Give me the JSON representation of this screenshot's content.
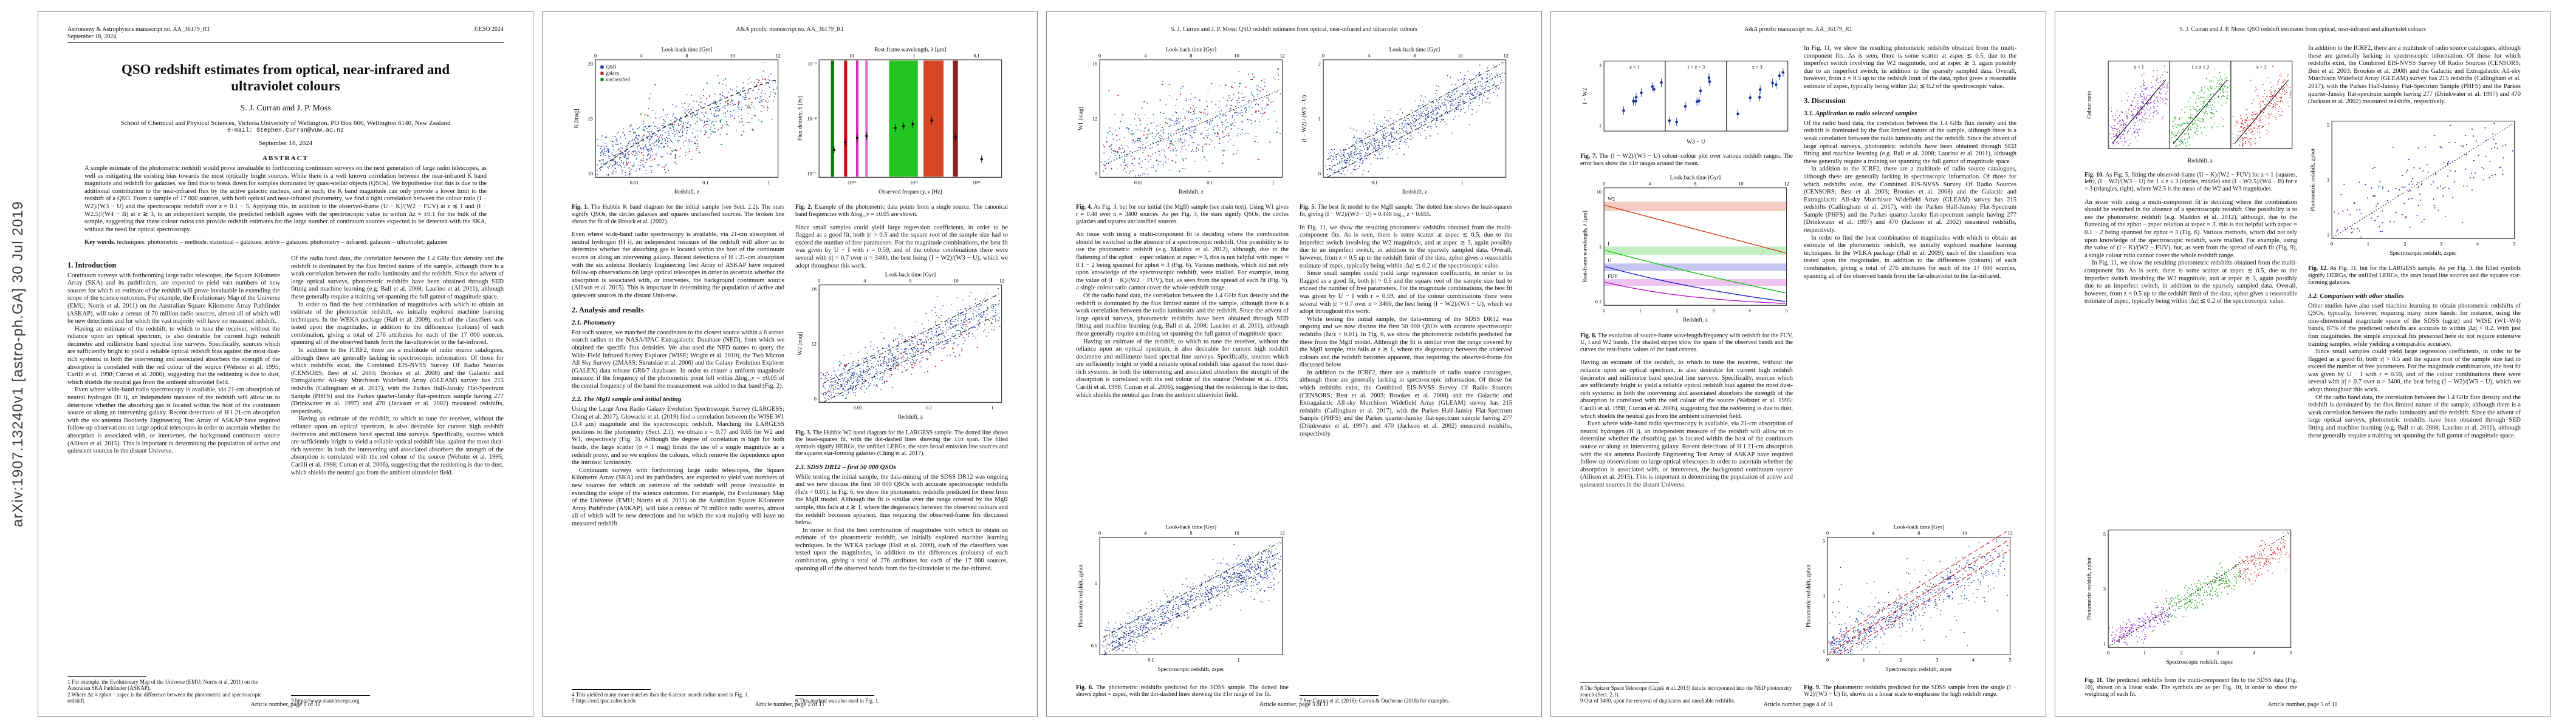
{
  "arxiv_stamp": "arXiv:1907.13240v1  [astro-ph.GA]  30 Jul 2019",
  "journal": {
    "manuscript_line": "Astronomy & Astrophysics manuscript no. AA_36179_R1",
    "date_line": "September 18, 2024",
    "eso_line": "©ESO 2024",
    "proofs_header": "A&A proofs: manuscript no. AA_36179_R1",
    "running_header": "S. J. Curran and J. P. Moss: QSO redshift estimates from optical, near-infrared and ultraviolet colours",
    "footers": [
      "Article number, page 1 of 11",
      "Article number, page 2 of 11",
      "Article number, page 3 of 11",
      "Article number, page 4 of 11",
      "Article number, page 5 of 11"
    ]
  },
  "titleblock": {
    "title": "QSO redshift estimates from optical, near-infrared and ultraviolet colours",
    "authors": "S. J. Curran and J. P. Moss",
    "affiliation": "School of Chemical and Physical Sciences, Victoria University of Wellington, PO Box 600, Wellington 6140, New Zealand",
    "email": "e-mail: Stephen.Curran@vuw.ac.nz",
    "date": "September 18, 2024",
    "abstract_label": "ABSTRACT",
    "abstract": "A simple estimate of the photometric redshift would prove invaluable to forthcoming continuum surveys on the next generation of large radio telescopes, as well as mitigating the existing bias towards the most optically bright sources. While there is a well known correlation between the near-infrared K band magnitude and redshift for galaxies, we find this to break down for samples dominated by quasi-stellar objects (QSOs). We hypothesise that this is due to the additional contribution to the near-infrared flux by the active galactic nucleus, and as such, the K band magnitude can only provide a lower limit to the redshift of a QSO. From a sample of 17 000 sources, with both optical and near-infrared photometry, we find a tight correlation between the colour ratio (I − W2)/(W3 − U) and the spectroscopic redshift over z ≈ 0.1 − 5. Applying this, in addition to the observed-frame (U − K)/(W2 − FUV) at z ≲ 1 and (I − W2.5)/(W4 − B) at z ≳ 3, to an independent sample, the predicted redshift agrees with the spectroscopic value to within Δz ≈ ±0.1 for the bulk of the sample, suggesting that these colour ratios can provide redshift estimates for the large number of continuum sources expected to be detected with the SKA, without the need for optical spectroscopy.",
    "keywords_label": "Key words.",
    "keywords": "techniques: photometric – methods: statistical – galaxies: active – galaxies: photometry – infrared: galaxies – ultraviolet: galaxies"
  },
  "sections": {
    "s1": "1. Introduction",
    "s2": "2. Analysis and results",
    "s21": "2.1. Photometry",
    "s22": "2.2. The MgII sample and initial testing",
    "s23": "2.3. SDSS DR12 – first 50 000 QSOs",
    "s3": "3. Discussion",
    "s31": "3.1. Application to radio selected samples",
    "s32": "3.2. Comparison with other studies"
  },
  "body": {
    "pA": "Continuum surveys with forthcoming large radio telescopes, the Square Kilometre Array (SKA) and its pathfinders, are expected to yield vast numbers of new sources for which an estimate of the redshift will prove invaluable in extending the scope of the science outcomes. For example, the Evolutionary Map of the Universe (EMU; Norris et al. 2011) on the Australian Square Kilometre Array Pathfinder (ASKAP), will take a census of 70 million radio sources, almost all of which will be new detections and for which the vast majority will have no measured redshift.",
    "pB": "Having an estimate of the redshift, to which to tune the receiver, without the reliance upon an optical spectrum, is also desirable for current high redshift decimetre and millimetre band spectral line surveys. Specifically, sources which are sufficiently bright to yield a reliable optical redshift bias against the most dust-rich systems: in both the intervening and associated absorbers the strength of the absorption is correlated with the red colour of the source (Webster et al. 1995; Carilli et al. 1998; Curran et al. 2006), suggesting that the reddening is due to dust, which shields the neutral gas from the ambient ultraviolet field.",
    "pC": "Even where wide-band radio spectroscopy is available, via 21-cm absorption of neutral hydrogen (H i), an independent measure of the redshift will allow us to determine whether the absorbing gas is located within the host of the continuum source or along an intervening galaxy. Recent detections of H i 21-cm absorption with the six antenna Boolardy Engineering Test Array of ASKAP have required follow-up observations on large optical telescopes in order to ascertain whether the absorption is associated with, or intervenes, the background continuum source (Allison et al. 2015). This is important in determining the population of active and quiescent sources in the distant Universe.",
    "pD": "For each source, we matched the coordinates to the closest source within a 6 arcsec search radius in the NASA/IPAC Extragalactic Database (NED), from which we obtained the specific flux densities. We also used the NED names to query the Wide-Field Infrared Survey Explorer (WISE; Wright et al. 2010), the Two Micron All Sky Survey (2MASS; Skrutskie et al. 2006) and the Galaxy Evolution Explorer (GALEX) data release GR6/7 databases. In order to ensure a uniform magnitude measure, if the frequency of the photometric point fell within Δlog₁₀ν = ±0.05 of the central frequency of the band the measurement was added to that band (Fig. 2).",
    "pE": "Since small samples could yield large regression coefficients, in order to be flagged as a good fit, both |r| > 0.5 and the square root of the sample size had to exceed the number of free parameters. For the magnitude combinations, the best fit was given by U − I with r = 0.59, and of the colour combinations there were several with |r| > 0.7 over n > 3400, the best being (I − W2)/(W3 − U), which we adopt throughout this work.",
    "pF": "While testing the initial sample, the data-mining of the SDSS DR12 was ongoing and we now discuss the first 50 000 QSOs with accurate spectroscopic redshifts (δz/z < 0.01). In Fig. 6, we show the photometric redshifts predicted for these from the MgII model. Although the fit is similar over the range covered by the MgII sample, this fails at z ≳ 1, where the degeneracy between the observed colours and the redshift becomes apparent, thus requiring the observed-frame fits discussed below.",
    "pG": "In order to find the best combination of magnitudes with which to obtain an estimate of the photometric redshift, we initially explored machine learning techniques. In the WEKA package (Hall et al. 2009), each of the classifiers was tested upon the magnitudes, in addition to the differences (colours) of each combination, giving a total of 276 attributes for each of the 17 000 sources, spanning all of the observed bands from the far-ultraviolet to the far-infrared.",
    "pH": "An issue with using a multi-component fit is deciding where the combination should be switched in the absence of a spectroscopic redshift. One possibility is to use the photometric redshift (e.g. Maddox et al. 2012), although, due to the flattening of the zphot − zspec relation at zspec ≈ 3, this is not helpful with zspec ≈ 0.1 − 2 being spanned for zphot ≈ 3 (Fig. 6). Various methods, which did not rely upon knowledge of the spectroscopic redshift, were trialled. For example, using the value of (I − K)/(W2 − FUV), but, as seen from the spread of each fit (Fig. 9), a single colour ratio cannot cover the whole redshift range.",
    "pI": "Of the radio band data, the correlation between the 1.4 GHz flux density and the redshift is dominated by the flux limited nature of the sample, although there is a weak correlation between the radio luminosity and the redshift. Since the advent of large optical surveys, photometric redshifts have been obtained through SED fitting and machine learning (e.g. Ball et al. 2008; Laurino et al. 2011), although these generally require a training set spanning the full gamut of magnitude space.",
    "pJ": "In addition to the ICRF2, there are a multitude of radio source catalogues, although these are generally lacking in spectroscopic information. Of those for which redshifts exist, the Combined EIS-NVSS Survey Of Radio Sources (CENSORS; Best et al. 2003; Brookes et al. 2008) and the Galactic and Extragalactic All-sky Murchison Widefield Array (GLEAM) survey has 215 redshifts (Callingham et al. 2017), with the Parkes Half-Jansky Flat-Spectrum Sample (PHFS) and the Parkes quarter-Jansky flat-spectrum sample having 277 (Drinkwater et al. 1997) and 470 (Jackson et al. 2002) measured redshifts, respectively.",
    "pK": "In Fig. 11, we show the resulting photometric redshifts obtained from the multi-component fits. As is seen, there is some scatter at zspec ≲ 0.5, due to the imperfect switch involving the W2 magnitude, and at zspec ≳ 3, again possibly due to an imperfect switch, in addition to the sparsely sampled data. Overall, however, from z ≈ 0.5 up to the redshift limit of the data, zphot gives a reasonable estimate of zspec, typically being within |Δz| ≲ 0.2 of the spectroscopic value.",
    "pL": "Other studies have also used machine learning to obtain photometric redshifts of QSOs, typically, however, requiring many more bands: for instance, using the nine-dimensional magnitude space of the SDSS (ugriz) and WISE (W1–W4) bands, 87% of the predicted redshifts are accurate to within |Δz| < 0.2. With just four magnitudes, the simple empirical fits presented here do not require extensive training samples, while yielding a comparable accuracy.",
    "pM": "Using the Large Area Radio Galaxy Evolution Spectroscopic Survey (LARGESS; Ching et al. 2017), Glowacki et al. (2019) find a correlation between the WISE W1 (3.4 μm) magnitude and the spectroscopic redshift. Matching the LARGESS positions to the photometry (Sect. 2.1), we obtain r = 0.77 and 0.65 for W2 and W1, respectively (Fig. 3). Although the degree of correlation is high for both bands, the large scatter (σ ≈ 1 mag) limits the use of a single magnitude as a redshift proxy, and so we explore the colours, which remove the dependence upon the intrinsic luminosity."
  },
  "footnotes": {
    "fn1": "1 For example, the Evolutionary Map of the Universe (EMU; Norris et al. 2011) on the Australian SKA Pathfinder (ASKAP).",
    "fn2": "2 Where Δz ≡ zphot − zspec is the difference between the photometric and spectroscopic redshift.",
    "fn3": "3 https://www.skatelescope.org",
    "fn4": "4 This yielded many more matches than the 6 arcsec search radius used in Fig. 1.",
    "fn5": "5 https://ned.ipac.caltech.edu",
    "fn6": "6 This method was also used in Fig. 1.",
    "fn7": "7 See Curran et al. (2016); Curran & Duchesne (2018) for examples.",
    "fn8": "8 The Spitzer Space Telescope (Capak et al. 2013) data is incorporated into the NED photometry search (Sect. 2.1).",
    "fn9": "9 Out of 3400, upon the removal of duplicates and unreliable redshifts."
  },
  "ticks": {
    "lookback": [
      "0",
      "4",
      "8",
      "10",
      "12"
    ],
    "logz3": [
      "0.01",
      "0.1",
      "1"
    ],
    "logz2": [
      "0.1",
      "1"
    ],
    "lin": [
      "0",
      "1",
      "2",
      "3",
      "4",
      "5"
    ],
    "wl": [
      "10",
      "1",
      "0.1"
    ],
    "flux": [
      "10⁻³",
      "10⁻⁴",
      "10⁻⁵"
    ],
    "freq": [
      "10¹⁴",
      "10¹⁵",
      "10¹⁶"
    ]
  },
  "figures": {
    "fig1": {
      "label": "Fig. 1.",
      "caption": "The Hubble K band diagram for the initial sample (see Sect. 2.2). The stars signify QSOs, the circles galaxies and squares unclassified sources. The broken line shows the fit of de Breuck et al. (2002).",
      "toplabel": "Look-back time [Gyr]",
      "xlabel": "Redshift, z",
      "ylabel": "K [mag]",
      "yticks": [
        "20",
        "15",
        "10"
      ],
      "legend": [
        "QSO",
        "galaxy",
        "unclassified"
      ]
    },
    "fig2": {
      "label": "Fig. 2.",
      "caption": "Example of the photometric data points from a single source. The canonical band frequencies with Δlog₁₀ν = ±0.05 are shown.",
      "toplabel": "Rest-frame wavelength, λ [μm]",
      "xlabel": "Observed frequency, ν [Hz]",
      "ylabel": "Flux density, S [Jy]"
    },
    "fig3": {
      "label": "Fig. 3.",
      "caption": "The Hubble W2 band diagram for the LARGESS sample. The dotted line shows the least-squares fit, with the dot-dashed lines showing the ±1σ span. The filled symbols signify HERGs, the unfilled LERGs, the stars broad emission line sources and the squares star-forming galaxies (Ching et al. 2017).",
      "toplabel": "Look-back time [Gyr]",
      "xlabel": "Redshift, z",
      "ylabel": "W2 [mag]",
      "yticks": [
        "16",
        "12",
        "8"
      ]
    },
    "fig4": {
      "label": "Fig. 4.",
      "caption": "As Fig. 3, but for our initial (the MgII) sample (see main text). Using W1 gives r = 0.48 over n = 3400 sources. As per Fig. 3, the stars signify QSOs, the circles galaxies and squares unclassified sources.",
      "toplabel": "Look-back time [Gyr]",
      "xlabel": "Redshift, z",
      "ylabel": "W1 [mag]",
      "yticks": [
        "16",
        "12",
        "8"
      ]
    },
    "fig5": {
      "label": "Fig. 5.",
      "caption": "The best fit model to the MgII sample. The dotted line shows the least-squares fit, giving (I − W2)/(W3 − U) = 0.448 log₁₀ z + 0.655.",
      "toplabel": "Look-back time [Gyr]",
      "xlabel": "Redshift, z",
      "ylabel": "(I − W2) / (W3 − U)",
      "yticks": [
        "2",
        "1",
        "0"
      ]
    },
    "fig6": {
      "label": "Fig. 6.",
      "caption": "The photometric redshifts predicted for the SDSS sample. The dotted line shows zphot = zspec, with the dot-dashed lines showing the ±1σ range of the fit.",
      "toplabel": "Look-back time [Gyr]",
      "xlabel": "Spectroscopic redshift, zspec",
      "ylabel": "Photometric redshift, zphot",
      "yticks": [
        "1",
        "0.1"
      ]
    },
    "fig7": {
      "label": "Fig. 7.",
      "caption": "The (I − W2)/(W3 − U) colour–colour plot over various redshift ranges. The error bars show the ±1σ ranges around the mean.",
      "xlabel": "W3 − U",
      "ylabel": "I − W2",
      "yticks": [
        "3",
        "1"
      ],
      "panels": [
        "z < 1",
        "1 < z < 3",
        "z > 3"
      ]
    },
    "fig8": {
      "label": "Fig. 8.",
      "caption": "The evolution of source-frame wavelength/frequency with redshift for the FUV, U, I and W2 bands. The shaded stripes show the spans of the observed bands and the curves the rest-frame values of the band centres.",
      "toplabel": "Look-back time [Gyr]",
      "xlabel": "Redshift, z",
      "ylabel": "Rest-frame wavelength, λ [μm]",
      "bands": [
        "W2",
        "I",
        "U",
        "FUV"
      ]
    },
    "fig9": {
      "label": "Fig. 9.",
      "caption": "The photometric redshifts predicted for the SDSS sample from the single (I − W2)/(W3 − U) fit, shown on a linear scale to emphasise the high redshift range.",
      "toplabel": "Look-back time [Gyr]",
      "xlabel": "Spectroscopic redshift, zspec",
      "ylabel": "Photometric redshift, zphot",
      "yticks": [
        "5",
        "3",
        "1"
      ]
    },
    "fig10": {
      "label": "Fig. 10.",
      "caption": "As Fig. 5, fitting the observed-frame (U − K)/(W2 − FUV) for z < 1 (squares, left), (I − W2)/(W3 − U) for 1 ≤ z ≤ 3 (circles, middle) and (I − W2.5)/(W4 − B) for z > 3 (triangles, right), where W2.5 is the mean of the W2 and W3 magnitudes.",
      "xlabel": "Redshift, z",
      "ylabel": "Colour ratio",
      "panels": [
        "z < 1",
        "1 ≤ z ≤ 3",
        "z > 3"
      ]
    },
    "fig11": {
      "label": "Fig. 11.",
      "caption": "The predicted redshifts from the multi-component fits to the SDSS data (Fig. 10), shown on a linear scale. The symbols are as per Fig. 10, in order to show the weighting of each fit.",
      "xlabel": "Spectroscopic redshift, zspec",
      "ylabel": "Photometric redshift, zphot",
      "yticks": [
        "5",
        "3",
        "1"
      ]
    },
    "fig12": {
      "label": "Fig. 12.",
      "caption": "As Fig. 11, but for the LARGESS sample. As per Fig. 3, the filled symbols signify HERGs, the unfilled LERGs, the stars broad line sources and the squares star-forming galaxies.",
      "xlabel": "Spectroscopic redshift, zspec",
      "ylabel": "Photometric redshift, zphot",
      "yticks": [
        "5",
        "3",
        "1"
      ]
    }
  }
}
